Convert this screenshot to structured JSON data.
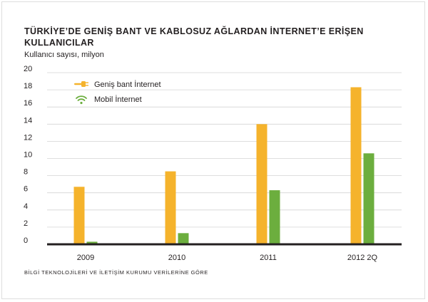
{
  "title_line1": "TÜRKİYE’DE GENİŞ BANT VE KABLOSUZ AĞLARDAN İNTERNET’E ERİŞEN",
  "title_line2": "KULLANICILAR",
  "footnote": "BİLGİ TEKNOLOJİLERİ VE İLETİŞİM KURUMU VERİLERİNE GÖRE",
  "chart_data": {
    "type": "bar",
    "ylabel": "Kullanıcı sayısı, milyon",
    "xlabel": "",
    "categories": [
      "2009",
      "2010",
      "2011",
      "2012 2Q"
    ],
    "ylim": [
      0,
      20
    ],
    "yticks": [
      0,
      2,
      4,
      6,
      8,
      10,
      12,
      14,
      16,
      18,
      20
    ],
    "grid": true,
    "legend": "top-left",
    "series": [
      {
        "name": "Geniş bant İnternet",
        "color": "#f5b32c",
        "icon": "plug-icon",
        "values": [
          6.7,
          8.5,
          14.0,
          18.3
        ]
      },
      {
        "name": "Mobil İnternet",
        "color": "#6cae3e",
        "icon": "wifi-icon",
        "values": [
          0.3,
          1.3,
          6.3,
          10.6
        ]
      }
    ]
  }
}
